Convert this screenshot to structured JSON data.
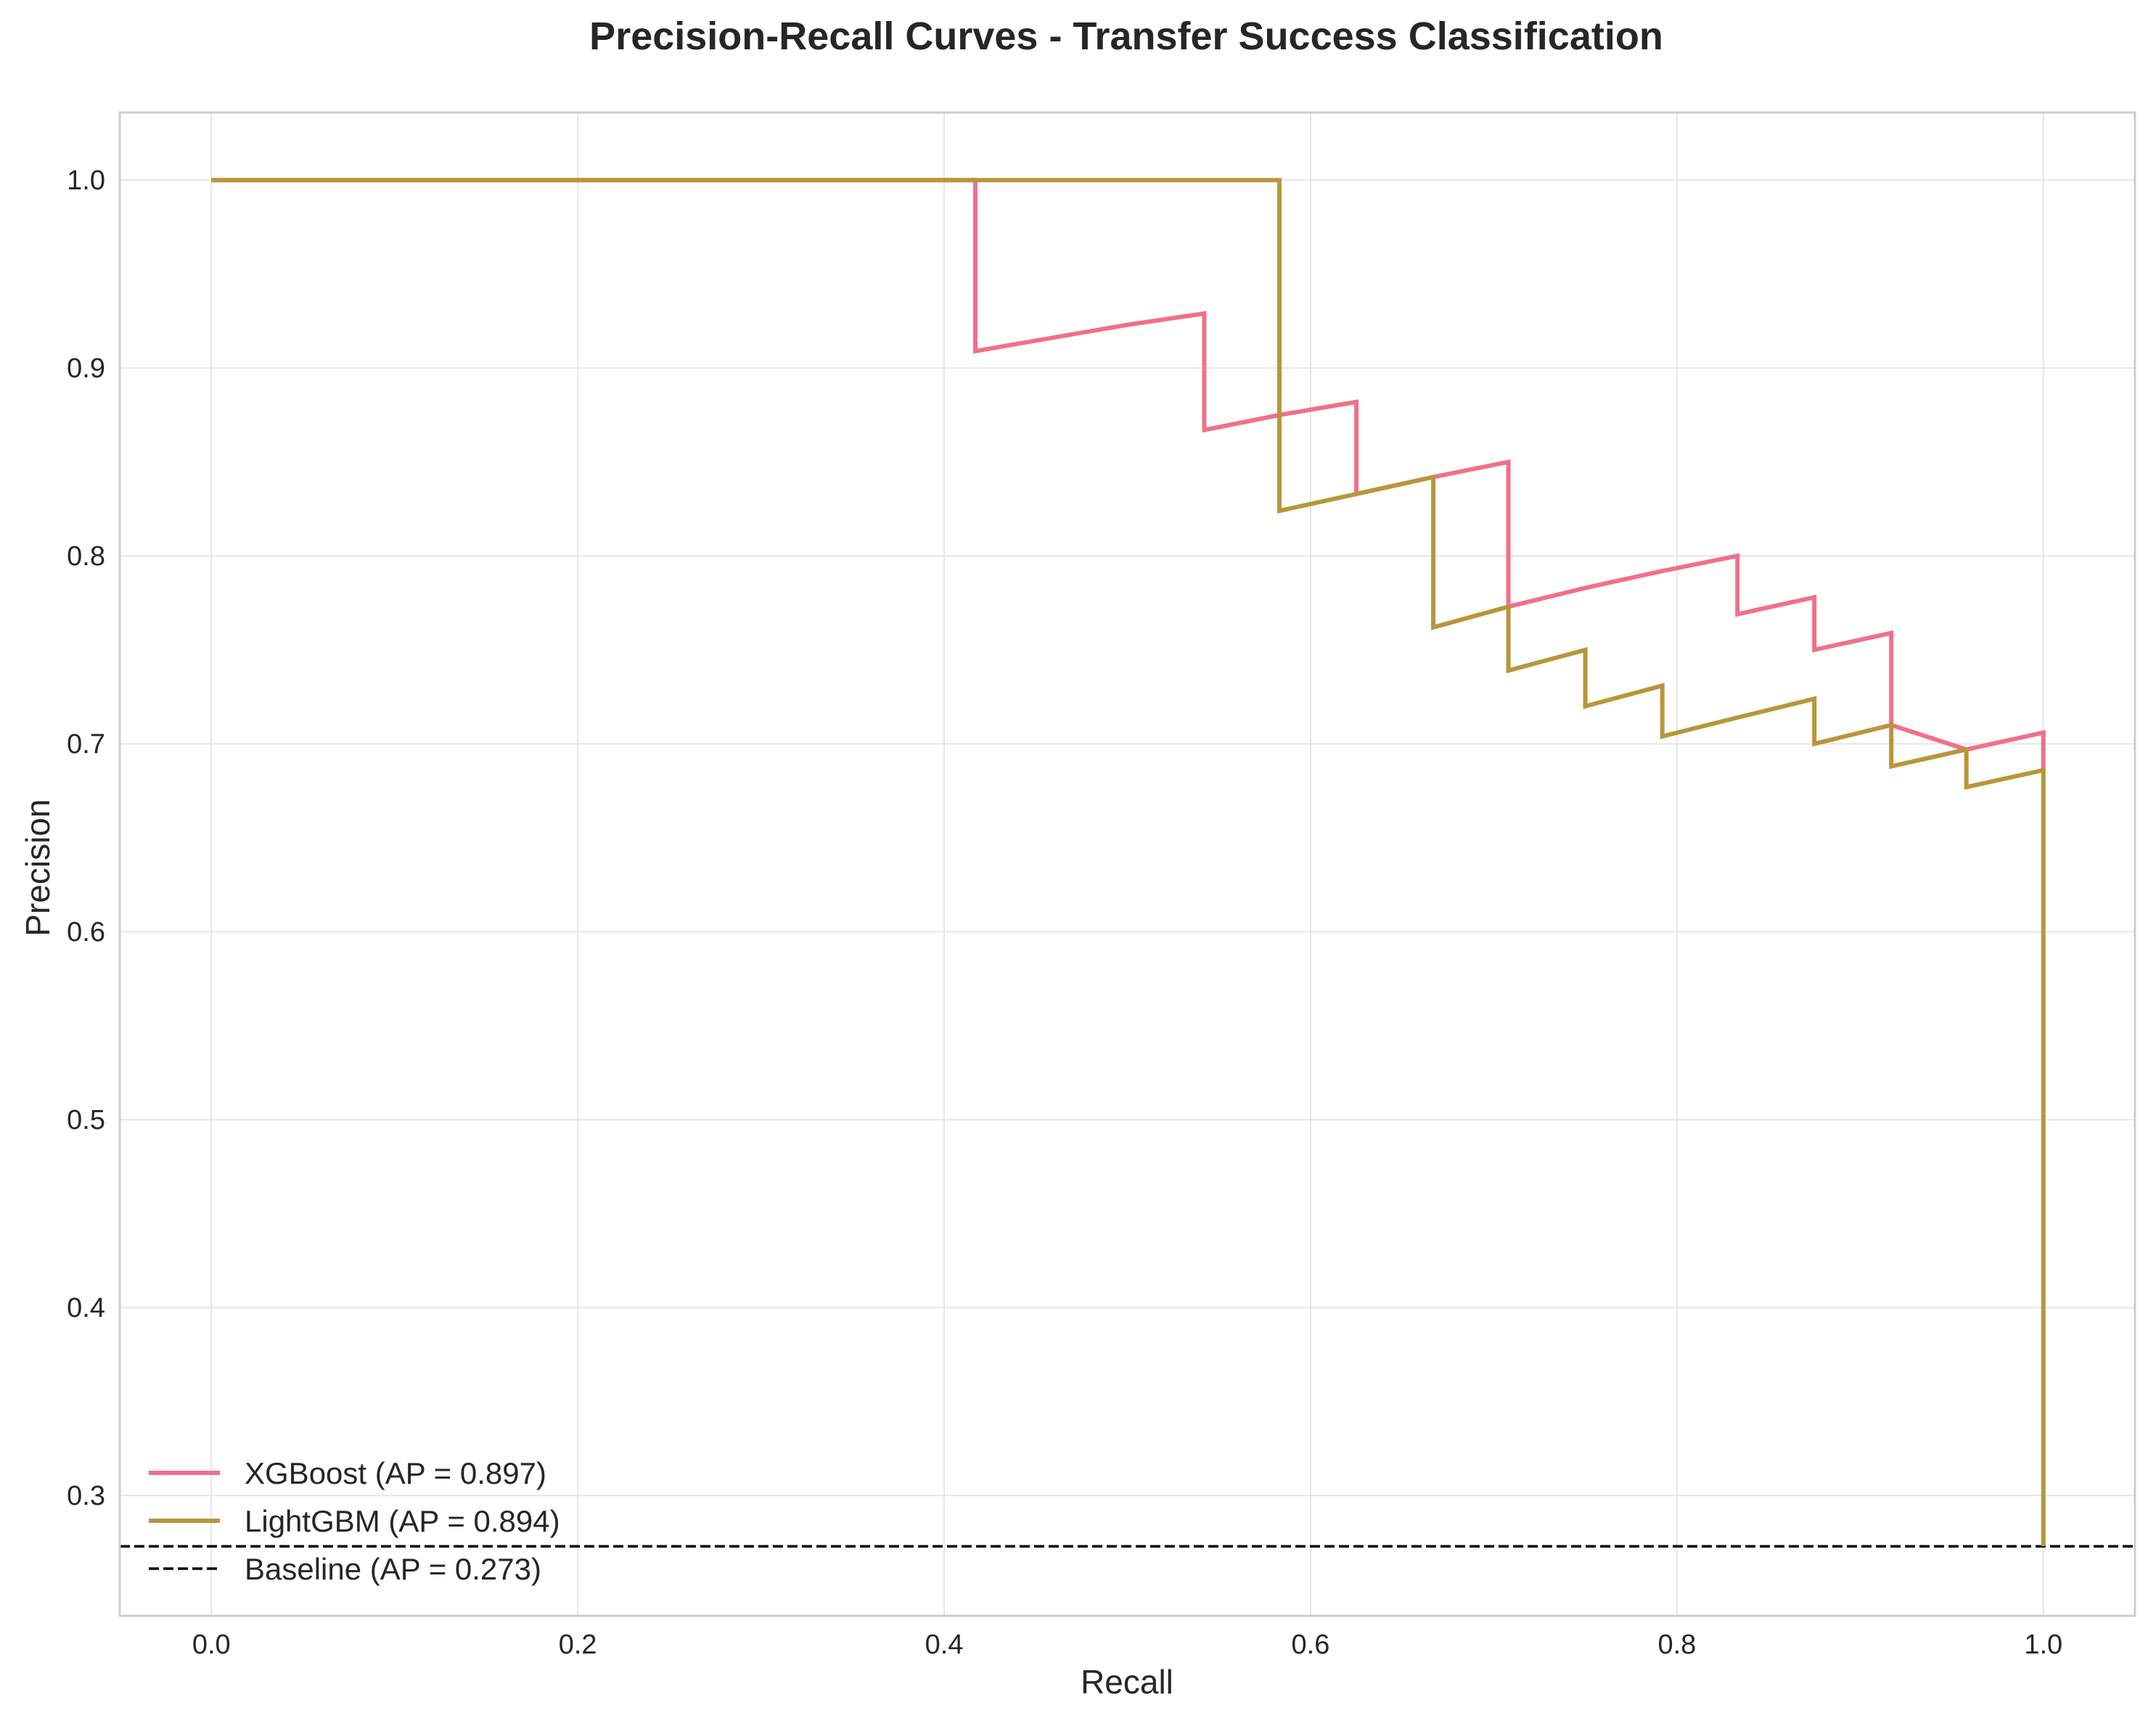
{
  "chart_data": {
    "type": "line",
    "title": "Precision-Recall Curves - Transfer Success Classification",
    "xlabel": "Recall",
    "ylabel": "Precision",
    "xlim": [
      -0.05,
      1.05
    ],
    "ylim": [
      0.236,
      1.036
    ],
    "grid": true,
    "legend_position": "bottom-left",
    "x_ticks": [
      "0.0",
      "0.2",
      "0.4",
      "0.6",
      "0.8",
      "1.0"
    ],
    "y_ticks": [
      "0.3",
      "0.4",
      "0.5",
      "0.6",
      "0.7",
      "0.8",
      "0.9",
      "1.0"
    ],
    "series": [
      {
        "name": "XGBoost (AP = 0.897)",
        "color": "#f07089",
        "style": "solid",
        "points": [
          [
            0.0,
            1.0
          ],
          [
            0.417,
            1.0
          ],
          [
            0.417,
            0.909
          ],
          [
            0.5,
            0.923
          ],
          [
            0.542,
            0.929
          ],
          [
            0.542,
            0.867
          ],
          [
            0.583,
            0.875
          ],
          [
            0.625,
            0.882
          ],
          [
            0.625,
            0.833
          ],
          [
            0.667,
            0.842
          ],
          [
            0.708,
            0.85
          ],
          [
            0.708,
            0.773
          ],
          [
            0.75,
            0.783
          ],
          [
            0.792,
            0.792
          ],
          [
            0.833,
            0.8
          ],
          [
            0.833,
            0.769
          ],
          [
            0.875,
            0.778
          ],
          [
            0.875,
            0.75
          ],
          [
            0.917,
            0.759
          ],
          [
            0.917,
            0.71
          ],
          [
            0.958,
            0.697
          ],
          [
            1.0,
            0.706
          ],
          [
            1.0,
            0.686
          ]
        ]
      },
      {
        "name": "LightGBM (AP = 0.894)",
        "color": "#b8963a",
        "style": "solid",
        "points": [
          [
            0.0,
            1.0
          ],
          [
            0.583,
            1.0
          ],
          [
            0.583,
            0.824
          ],
          [
            0.625,
            0.833
          ],
          [
            0.667,
            0.842
          ],
          [
            0.667,
            0.762
          ],
          [
            0.708,
            0.773
          ],
          [
            0.708,
            0.739
          ],
          [
            0.75,
            0.75
          ],
          [
            0.75,
            0.72
          ],
          [
            0.792,
            0.731
          ],
          [
            0.792,
            0.704
          ],
          [
            0.833,
            0.714
          ],
          [
            0.875,
            0.724
          ],
          [
            0.875,
            0.7
          ],
          [
            0.917,
            0.71
          ],
          [
            0.917,
            0.688
          ],
          [
            0.958,
            0.697
          ],
          [
            0.958,
            0.677
          ],
          [
            1.0,
            0.686
          ],
          [
            1.0,
            0.273
          ]
        ]
      },
      {
        "name": "Baseline (AP = 0.273)",
        "color": "#000000",
        "style": "dashed",
        "points": [
          [
            -0.05,
            0.273
          ],
          [
            1.05,
            0.273
          ]
        ]
      }
    ]
  }
}
